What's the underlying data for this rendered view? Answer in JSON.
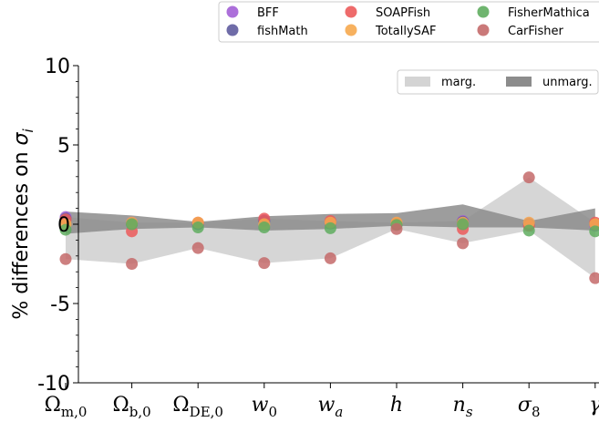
{
  "chart_data": {
    "type": "scatter",
    "title": "",
    "ylabel": "% differences on σ_i",
    "ylabel_parts": {
      "prefix": "% differences on ",
      "symbol": "σ",
      "subscript": "i"
    },
    "categories": [
      {
        "base": "Ω",
        "sub": "m,0"
      },
      {
        "base": "Ω",
        "sub": "b,0"
      },
      {
        "base": "Ω",
        "sub": "DE,0"
      },
      {
        "base": "w",
        "sub": "0"
      },
      {
        "base": "w",
        "sub": "a"
      },
      {
        "base": "h",
        "sub": ""
      },
      {
        "base": "n",
        "sub": "s"
      },
      {
        "base": "σ",
        "sub": "8"
      },
      {
        "base": "γ",
        "sub": ""
      }
    ],
    "ylim": [
      -10,
      10
    ],
    "yticks": [
      {
        "value": 10,
        "label": "10"
      },
      {
        "value": 5,
        "label": "5"
      },
      {
        "value": 0,
        "label": "0"
      },
      {
        "value": -5,
        "label": "-5"
      },
      {
        "value": -10,
        "label": "-10"
      }
    ],
    "grid": false,
    "legend_position": "top",
    "series": [
      {
        "name": "BFF",
        "color": "#a35fd6",
        "values": [
          0.45,
          0.1,
          0.05,
          0.25,
          0.1,
          0.05,
          0.2,
          0.05,
          -0.1
        ]
      },
      {
        "name": "fishMath",
        "color": "#5f5c9e",
        "values": [
          0.35,
          0.05,
          0.0,
          0.2,
          0.05,
          0.0,
          0.15,
          0.0,
          0.0
        ]
      },
      {
        "name": "SOAPFish",
        "color": "#ec5b5b",
        "values": [
          0.3,
          -0.45,
          0.1,
          0.35,
          0.2,
          0.05,
          -0.3,
          -0.1,
          0.1
        ]
      },
      {
        "name": "TotallySAF",
        "color": "#f6a84e",
        "values": [
          0.0,
          0.1,
          0.1,
          0.0,
          0.1,
          0.1,
          0.1,
          0.1,
          0.0
        ]
      },
      {
        "name": "FisherMathica",
        "color": "#5fad5f",
        "values": [
          -0.35,
          0.0,
          -0.2,
          -0.2,
          -0.25,
          -0.05,
          0.0,
          -0.4,
          -0.45
        ]
      },
      {
        "name": "CarFisher",
        "color": "#c46a6a",
        "values": [
          -2.2,
          -2.5,
          -1.5,
          -2.45,
          -2.15,
          -0.3,
          -1.2,
          2.95,
          -3.4
        ]
      }
    ],
    "bands": [
      {
        "name": "marg.",
        "color": "#d4d4d4",
        "lower": [
          -2.2,
          -2.5,
          -1.5,
          -2.45,
          -2.15,
          -0.3,
          -1.2,
          -0.4,
          -3.4
        ],
        "upper": [
          0.45,
          0.1,
          0.1,
          0.35,
          0.2,
          0.1,
          0.2,
          2.95,
          0.1
        ]
      },
      {
        "name": "unmarg.",
        "color": "#8c8c8c",
        "lower": [
          -0.6,
          -0.3,
          -0.2,
          -0.4,
          -0.3,
          -0.1,
          -0.2,
          -0.2,
          -0.4
        ],
        "upper": [
          0.8,
          0.55,
          0.15,
          0.5,
          0.65,
          0.7,
          1.25,
          0.2,
          1.0
        ]
      }
    ]
  }
}
